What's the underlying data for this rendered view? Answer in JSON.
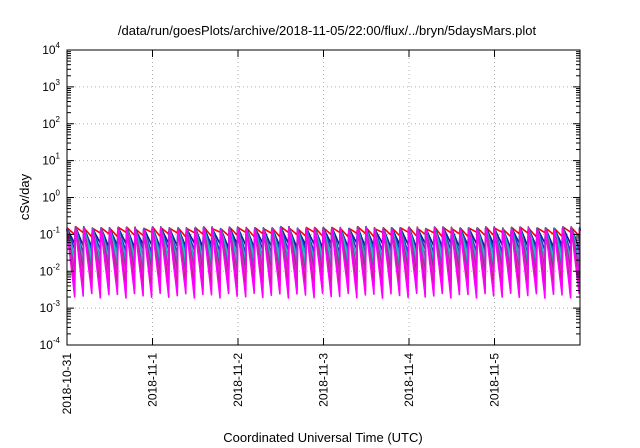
{
  "chart_data": {
    "type": "line",
    "title": "/data/run/goesPlots/archive/2018-11-05/22:00/flux/../bryn/5daysMars.plot",
    "xlabel": "Coordinated Universal Time (UTC)",
    "ylabel": "cSv/day",
    "y_scale": "log",
    "ylim": [
      0.0001,
      10000
    ],
    "y_ticks": [
      {
        "base": "10",
        "exp": "4",
        "value": 10000
      },
      {
        "base": "10",
        "exp": "3",
        "value": 1000
      },
      {
        "base": "10",
        "exp": "2",
        "value": 100
      },
      {
        "base": "10",
        "exp": "1",
        "value": 10
      },
      {
        "base": "10",
        "exp": "0",
        "value": 1
      },
      {
        "base": "10",
        "exp": "-1",
        "value": 0.1
      },
      {
        "base": "10",
        "exp": "-2",
        "value": 0.01
      },
      {
        "base": "10",
        "exp": "-3",
        "value": 0.001
      },
      {
        "base": "10",
        "exp": "-4",
        "value": 0.0001
      }
    ],
    "xlim": [
      "2018-10-31",
      "2018-11-06"
    ],
    "x_ticks": [
      "2018-10-31",
      "2018-11-1",
      "2018-11-2",
      "2018-11-3",
      "2018-11-4",
      "2018-11-5"
    ],
    "grid": true,
    "pattern": {
      "period_hours": 2.4,
      "peak_value": 0.15,
      "peak_variation": 0.04
    },
    "series": [
      {
        "color": "#ff0000",
        "trough": 0.1
      },
      {
        "color": "#0a1e8c",
        "trough": 0.05
      },
      {
        "color": "#2233dd",
        "trough": 0.035
      },
      {
        "color": "#1e9fbf",
        "trough": 0.025
      },
      {
        "color": "#22c4c4",
        "trough": 0.018
      },
      {
        "color": "#3388aa",
        "trough": 0.013
      },
      {
        "color": "#8a2a8a",
        "trough": 0.009
      },
      {
        "color": "#cc33aa",
        "trough": 0.0065
      },
      {
        "color": "#ee22ee",
        "trough": 0.0045
      },
      {
        "color": "#aa2255",
        "trough": 0.0033
      },
      {
        "color": "#ff00ff",
        "trough": 0.0022
      }
    ]
  }
}
